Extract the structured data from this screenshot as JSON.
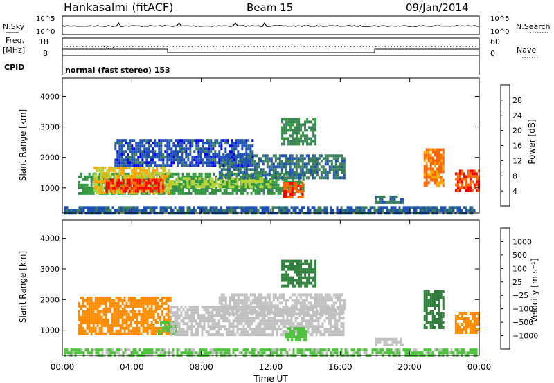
{
  "header": {
    "station": "Hankasalmi (fitACF)",
    "beam": "Beam 15",
    "date": "09/Jan/2014"
  },
  "noise_panel": {
    "left_label": "N.Sky",
    "right_label": "N.Search",
    "left_ticks": [
      "10^5",
      "10^0"
    ],
    "right_ticks": [
      "10^5",
      "10^0"
    ]
  },
  "freq_panel": {
    "left_label_1": "Freq.",
    "left_label_2": "[MHz]",
    "right_label": "Nave",
    "left_ticks": [
      "18",
      "8"
    ],
    "right_ticks": [
      "60",
      "0"
    ]
  },
  "cpid_panel": {
    "label": "CPID",
    "program": "normal (fast stereo) 153"
  },
  "colors": {
    "power_scale": [
      "#0000ff",
      "#1f4fb8",
      "#3a7f5a",
      "#2e9a3a",
      "#b6d43a",
      "#ffa500",
      "#ff6600",
      "#ff0000"
    ],
    "velocity_scale": [
      "#ff0000",
      "#ff4a00",
      "#ff8a00",
      "#ffb000",
      "#c0c0c0",
      "#4cc23a",
      "#2e7f3a",
      "#1f4fb8",
      "#1f3fc8"
    ]
  },
  "chart_data": [
    {
      "type": "heatmap",
      "name": "power",
      "xlabel": "Time UT",
      "ylabel": "Slant Range [km]",
      "x_ticks": [
        "00:00",
        "04:00",
        "08:00",
        "12:00",
        "16:00",
        "20:00",
        "00:00"
      ],
      "x_range_hours": [
        0,
        24
      ],
      "y_ticks": [
        1000,
        2000,
        3000,
        4000
      ],
      "ylim": [
        180,
        4600
      ],
      "colorbar_label": "Power [dB]",
      "colorbar_ticks": [
        "4",
        "8",
        "12",
        "16",
        "20",
        "24",
        "28"
      ],
      "colorbar_range": [
        0,
        32
      ],
      "regions": [
        {
          "t0": 0.9,
          "t1": 13.9,
          "r0": 800,
          "r1": 1500,
          "v": 13
        },
        {
          "t0": 1.8,
          "t1": 6.2,
          "r0": 850,
          "r1": 1700,
          "v": 20
        },
        {
          "t0": 2.5,
          "t1": 5.8,
          "r0": 850,
          "r1": 1300,
          "v": 29
        },
        {
          "t0": 6.2,
          "t1": 12.0,
          "r0": 1050,
          "r1": 1350,
          "v": 17
        },
        {
          "t0": 9.0,
          "t1": 16.2,
          "r0": 1300,
          "r1": 2100,
          "v": 9
        },
        {
          "t0": 12.7,
          "t1": 13.8,
          "r0": 700,
          "r1": 1200,
          "v": 27
        },
        {
          "t0": 12.6,
          "t1": 14.6,
          "r0": 2400,
          "r1": 3300,
          "v": 11
        },
        {
          "t0": 3.0,
          "t1": 11.0,
          "r0": 1700,
          "r1": 2600,
          "v": 6
        },
        {
          "t0": 18.0,
          "t1": 19.6,
          "r0": 500,
          "r1": 750,
          "v": 8
        },
        {
          "t0": 20.8,
          "t1": 21.9,
          "r0": 1100,
          "r1": 2300,
          "v": 25
        },
        {
          "t0": 22.6,
          "t1": 24.0,
          "r0": 900,
          "r1": 1600,
          "v": 27
        },
        {
          "t0": 0.1,
          "t1": 23.9,
          "r0": 200,
          "r1": 400,
          "v": 7
        }
      ]
    },
    {
      "type": "heatmap",
      "name": "velocity",
      "xlabel": "Time UT",
      "ylabel": "Slant Range [km]",
      "x_ticks": [
        "00:00",
        "04:00",
        "08:00",
        "12:00",
        "16:00",
        "20:00",
        "00:00"
      ],
      "x_range_hours": [
        0,
        24
      ],
      "y_ticks": [
        1000,
        2000,
        3000,
        4000
      ],
      "ylim": [
        180,
        4600
      ],
      "colorbar_label": "Velocity [m s⁻¹]",
      "colorbar_ticks": [
        "1000",
        "500",
        "100",
        "25",
        "−25",
        "−100",
        "−500",
        "−1000"
      ],
      "regions": [
        {
          "t0": 0.9,
          "t1": 6.2,
          "r0": 850,
          "r1": 2100,
          "v": -200
        },
        {
          "t0": 5.5,
          "t1": 6.5,
          "r0": 850,
          "r1": 1300,
          "v": 60
        },
        {
          "t0": 6.2,
          "t1": 16.2,
          "r0": 850,
          "r1": 1800,
          "v": 0
        },
        {
          "t0": 9.0,
          "t1": 16.2,
          "r0": 1500,
          "r1": 2200,
          "v": 0
        },
        {
          "t0": 12.8,
          "t1": 14.0,
          "r0": 700,
          "r1": 1100,
          "v": 70
        },
        {
          "t0": 12.6,
          "t1": 14.6,
          "r0": 2400,
          "r1": 3300,
          "v": 300
        },
        {
          "t0": 18.0,
          "t1": 19.6,
          "r0": 500,
          "r1": 750,
          "v": 0
        },
        {
          "t0": 20.8,
          "t1": 21.9,
          "r0": 1100,
          "r1": 2300,
          "v": 300
        },
        {
          "t0": 22.6,
          "t1": 24.0,
          "r0": 900,
          "r1": 1600,
          "v": -200
        },
        {
          "t0": 0.1,
          "t1": 23.9,
          "r0": 200,
          "r1": 400,
          "v": 30
        }
      ]
    }
  ]
}
